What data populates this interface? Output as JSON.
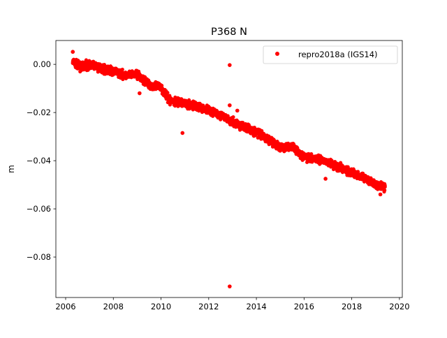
{
  "chart_data": {
    "type": "scatter",
    "title": "P368 N",
    "xlabel": "",
    "ylabel": "m",
    "xlim": [
      2005.59,
      2020.12
    ],
    "ylim": [
      -0.0968,
      0.0099
    ],
    "xticks": [
      2006,
      2008,
      2010,
      2012,
      2014,
      2016,
      2018,
      2020
    ],
    "yticks": [
      0.0,
      -0.02,
      -0.04,
      -0.06,
      -0.08
    ],
    "ytick_labels": [
      "0.00",
      "−0.02",
      "−0.04",
      "−0.06",
      "−0.08"
    ],
    "legend": {
      "label": "repro2018a (IGS14)",
      "placement": "top-right"
    },
    "color": "#ff0000",
    "series": [
      {
        "name": "repro2018a (IGS14)",
        "trend_x": [
          2006.3,
          2006.6,
          2007.0,
          2007.5,
          2008.0,
          2008.5,
          2009.0,
          2009.3,
          2009.6,
          2010.0,
          2010.3,
          2010.6,
          2011.0,
          2011.5,
          2012.0,
          2012.5,
          2013.0,
          2013.5,
          2014.0,
          2014.5,
          2015.0,
          2015.5,
          2016.0,
          2016.5,
          2017.0,
          2017.5,
          2018.0,
          2018.5,
          2019.0,
          2019.4
        ],
        "trend_y": [
          0.001,
          -0.001,
          0.0,
          -0.0015,
          -0.003,
          -0.0045,
          -0.004,
          -0.0067,
          -0.0087,
          -0.0095,
          -0.0145,
          -0.0157,
          -0.0162,
          -0.0174,
          -0.019,
          -0.021,
          -0.024,
          -0.026,
          -0.0284,
          -0.031,
          -0.0348,
          -0.034,
          -0.0385,
          -0.039,
          -0.0405,
          -0.043,
          -0.045,
          -0.0467,
          -0.05,
          -0.051
        ],
        "scatter_half_width": 0.0025,
        "outliers": [
          [
            2012.88,
            -0.0003
          ],
          [
            2012.88,
            -0.017
          ],
          [
            2013.2,
            -0.0192
          ],
          [
            2010.9,
            -0.0285
          ],
          [
            2012.88,
            -0.0922
          ],
          [
            2006.3,
            0.0052
          ],
          [
            2009.1,
            -0.012
          ],
          [
            2016.9,
            -0.0475
          ],
          [
            2019.2,
            -0.054
          ]
        ]
      }
    ]
  }
}
